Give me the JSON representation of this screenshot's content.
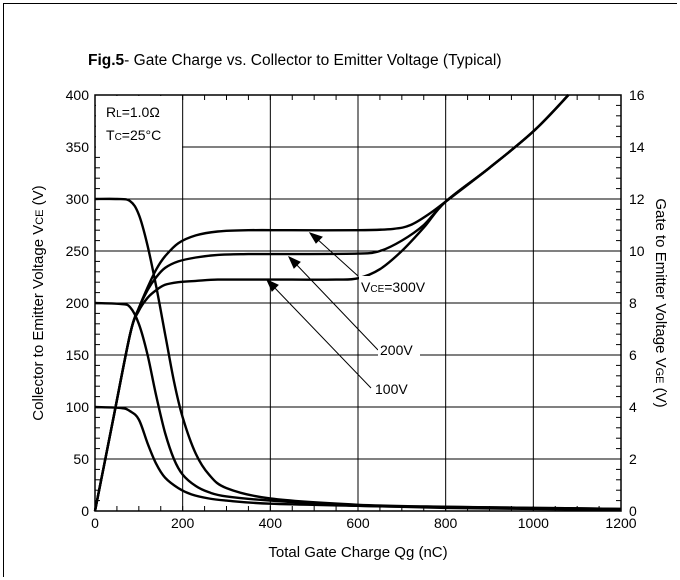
{
  "title": {
    "fig": "Fig.5",
    "text": "- Gate Charge vs. Collector to Emitter Voltage (Typical)"
  },
  "conditions": {
    "rl": {
      "main": "R",
      "sub": "L",
      "rest": "=1.0Ω"
    },
    "tc": {
      "main": "T",
      "sub": "C",
      "rest": "=25°C"
    }
  },
  "axes": {
    "x_label": "Total Gate Charge Qg (nC)",
    "y_left_label": {
      "main": "Collector to Emitter Voltage V",
      "sub": "CE",
      "rest": " (V)"
    },
    "y_right_label": {
      "main": "Gate to Emitter Voltage V",
      "sub": "GE",
      "rest": " (V)"
    }
  },
  "annotations": {
    "vce300": {
      "main": "V",
      "sub": "CE",
      "rest": "=300V"
    },
    "vce200": "200V",
    "vce100": "100V"
  },
  "chart_data": {
    "type": "line",
    "x_range": [
      0,
      1200
    ],
    "x_ticks": [
      0,
      200,
      400,
      600,
      800,
      1000,
      1200
    ],
    "y_left_range": [
      0,
      400
    ],
    "y_left_ticks": [
      0,
      50,
      100,
      150,
      200,
      250,
      300,
      350,
      400
    ],
    "y_right_range": [
      0,
      16
    ],
    "y_right_ticks": [
      0,
      2,
      4,
      6,
      8,
      10,
      12,
      14,
      16
    ],
    "grid": true,
    "series": [
      {
        "name": "VCE=300V",
        "axis": "left",
        "x": [
          0,
          50,
          80,
          100,
          120,
          140,
          160,
          180,
          200,
          230,
          260,
          300,
          400,
          600,
          800,
          1000,
          1200
        ],
        "y": [
          300,
          300,
          298,
          285,
          255,
          215,
          170,
          125,
          90,
          55,
          35,
          22,
          12,
          6,
          4,
          3,
          2
        ]
      },
      {
        "name": "VCE=200V",
        "axis": "left",
        "x": [
          0,
          60,
          80,
          100,
          120,
          140,
          160,
          180,
          200,
          230,
          260,
          300,
          400,
          600,
          800,
          1000,
          1200
        ],
        "y": [
          200,
          199,
          196,
          180,
          150,
          110,
          75,
          50,
          35,
          24,
          18,
          14,
          10,
          5,
          4,
          3,
          2
        ]
      },
      {
        "name": "VCE=100V",
        "axis": "left",
        "x": [
          0,
          60,
          80,
          100,
          120,
          140,
          160,
          190,
          220,
          260,
          300,
          400,
          600,
          800,
          1000,
          1200
        ],
        "y": [
          100,
          99,
          96,
          88,
          65,
          45,
          32,
          22,
          16,
          12,
          10,
          7,
          5,
          3,
          2,
          1
        ]
      },
      {
        "name": "VCE=300V",
        "axis": "right",
        "x": [
          0,
          40,
          80,
          100,
          120,
          140,
          160,
          190,
          230,
          280,
          350,
          450,
          600,
          680,
          720,
          760,
          800,
          900,
          1000,
          1080
        ],
        "y": [
          0,
          3.4,
          6.8,
          7.8,
          8.6,
          9.3,
          9.8,
          10.3,
          10.6,
          10.75,
          10.8,
          10.8,
          10.8,
          10.85,
          11.0,
          11.4,
          11.9,
          13.2,
          14.6,
          16
        ]
      },
      {
        "name": "VCE=200V",
        "axis": "right",
        "x": [
          0,
          40,
          80,
          100,
          120,
          140,
          160,
          190,
          230,
          280,
          350,
          450,
          600,
          650,
          700,
          750,
          800,
          900,
          1000,
          1080
        ],
        "y": [
          0,
          3.4,
          6.8,
          7.8,
          8.5,
          9.0,
          9.35,
          9.6,
          9.75,
          9.85,
          9.88,
          9.88,
          9.9,
          10.0,
          10.4,
          11.0,
          11.9,
          13.2,
          14.6,
          16
        ]
      },
      {
        "name": "VCE=100V",
        "axis": "right",
        "x": [
          0,
          40,
          80,
          100,
          120,
          140,
          160,
          190,
          230,
          280,
          350,
          450,
          550,
          600,
          650,
          700,
          750,
          800,
          900,
          1000,
          1080
        ],
        "y": [
          0,
          3.4,
          6.8,
          7.7,
          8.2,
          8.5,
          8.7,
          8.8,
          8.85,
          8.9,
          8.9,
          8.9,
          8.9,
          8.95,
          9.3,
          10.0,
          10.9,
          11.9,
          13.2,
          14.6,
          16
        ]
      }
    ]
  }
}
